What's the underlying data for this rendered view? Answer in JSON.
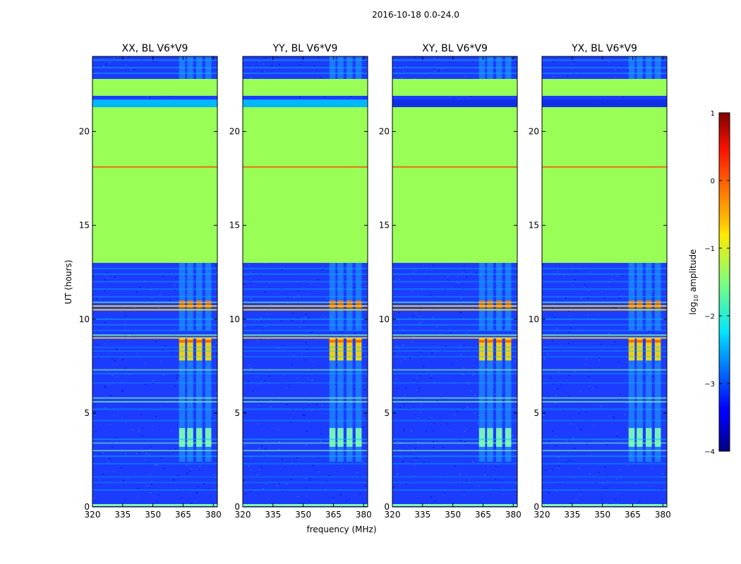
{
  "figure": {
    "suptitle": "2016-10-18 0.0-24.0",
    "ylabel": "UT (hours)",
    "xlabel": "frequency (MHz)"
  },
  "colors": {
    "flag_fill": "#99ff57",
    "noise_low": "#1c3cff",
    "noise_high": "#00c0ff",
    "rfi_mid": "#80ffb0",
    "rfi_high": "#ff6a00",
    "axis": "#000000"
  },
  "chart_data": [
    {
      "type": "heatmap",
      "title": "XX, BL V6*V9",
      "polarization": "XX",
      "x_ticks": [
        320,
        335,
        350,
        365,
        380
      ],
      "y_ticks": [
        0,
        5,
        10,
        15,
        20
      ],
      "xlim": [
        320,
        382
      ],
      "ylim": [
        0,
        24
      ],
      "flagged_ut_ranges": [
        [
          13.0,
          21.3
        ],
        [
          21.9,
          22.8
        ]
      ],
      "rfi_band_mhz": [
        [
          363,
          366
        ],
        [
          367,
          370
        ],
        [
          371.5,
          374.5
        ],
        [
          376,
          379
        ]
      ]
    },
    {
      "type": "heatmap",
      "title": "YY, BL V6*V9",
      "polarization": "YY",
      "x_ticks": [
        320,
        335,
        350,
        365,
        380
      ],
      "y_ticks": [
        0,
        5,
        10,
        15,
        20
      ],
      "xlim": [
        320,
        382
      ],
      "ylim": [
        0,
        24
      ],
      "flagged_ut_ranges": [
        [
          13.0,
          21.3
        ],
        [
          21.9,
          22.8
        ]
      ],
      "rfi_band_mhz": [
        [
          363,
          366
        ],
        [
          367,
          370
        ],
        [
          371.5,
          374.5
        ],
        [
          376,
          379
        ]
      ]
    },
    {
      "type": "heatmap",
      "title": "XY, BL V6*V9",
      "polarization": "XY",
      "x_ticks": [
        320,
        335,
        350,
        365,
        380
      ],
      "y_ticks": [
        0,
        5,
        10,
        15,
        20
      ],
      "xlim": [
        320,
        382
      ],
      "ylim": [
        0,
        24
      ],
      "flagged_ut_ranges": [
        [
          13.0,
          21.3
        ],
        [
          21.9,
          22.8
        ]
      ],
      "rfi_band_mhz": [
        [
          363,
          366
        ],
        [
          367,
          370
        ],
        [
          371.5,
          374.5
        ],
        [
          376,
          379
        ]
      ]
    },
    {
      "type": "heatmap",
      "title": "YX, BL V6*V9",
      "polarization": "YX",
      "x_ticks": [
        320,
        335,
        350,
        365,
        380
      ],
      "y_ticks": [
        0,
        5,
        10,
        15,
        20
      ],
      "xlim": [
        320,
        382
      ],
      "ylim": [
        0,
        24
      ],
      "flagged_ut_ranges": [
        [
          13.0,
          21.3
        ],
        [
          21.9,
          22.8
        ]
      ],
      "rfi_band_mhz": [
        [
          363,
          366
        ],
        [
          367,
          370
        ],
        [
          371.5,
          374.5
        ],
        [
          376,
          379
        ]
      ]
    }
  ],
  "colorbar": {
    "label_prefix": "log",
    "label_sub": "10",
    "label_suffix": " amplitude",
    "range": [
      -4,
      1
    ],
    "ticks": [
      {
        "value": 1,
        "label": "1"
      },
      {
        "value": 0,
        "label": "0"
      },
      {
        "value": -1,
        "label": "−1"
      },
      {
        "value": -2,
        "label": "−2"
      },
      {
        "value": -3,
        "label": "−3"
      },
      {
        "value": -4,
        "label": "−4"
      }
    ]
  }
}
